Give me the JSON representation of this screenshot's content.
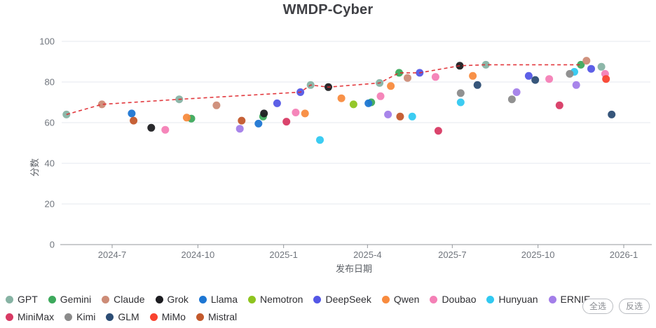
{
  "header": {
    "title": "WMDP-Cyber"
  },
  "controls": {
    "select_all_label": "全选",
    "invert_label": "反选"
  },
  "chart_data": {
    "type": "scatter",
    "title": "WMDP-Cyber",
    "xlabel": "发布日期",
    "ylabel": "分数",
    "ylim": [
      0,
      100
    ],
    "grid": true,
    "legend_position": "bottom",
    "y_ticks": [
      0,
      20,
      40,
      60,
      80,
      100
    ],
    "x_ticks": [
      {
        "label": "2024-7",
        "date": "2024-07-01"
      },
      {
        "label": "2024-10",
        "date": "2024-10-01"
      },
      {
        "label": "2025-1",
        "date": "2025-01-01"
      },
      {
        "label": "2025-4",
        "date": "2025-04-01"
      },
      {
        "label": "2025-7",
        "date": "2025-07-01"
      },
      {
        "label": "2025-10",
        "date": "2025-10-01"
      },
      {
        "label": "2026-1",
        "date": "2026-01-01"
      }
    ],
    "series": [
      {
        "name": "GPT",
        "color": "#87b3a4",
        "points": [
          [
            "2024-05-13",
            64
          ],
          [
            "2024-09-11",
            71.5
          ],
          [
            "2025-01-30",
            78.5
          ],
          [
            "2025-04-14",
            79.5
          ],
          [
            "2025-08-06",
            88.5
          ],
          [
            "2025-12-08",
            87.5
          ]
        ]
      },
      {
        "name": "Gemini",
        "color": "#3da95c",
        "points": [
          [
            "2024-09-24",
            62
          ],
          [
            "2024-12-10",
            63
          ],
          [
            "2025-04-05",
            70
          ],
          [
            "2025-05-05",
            84.5
          ],
          [
            "2025-11-16",
            88.5
          ]
        ]
      },
      {
        "name": "Claude",
        "color": "#cd8c77",
        "points": [
          [
            "2024-06-20",
            69
          ],
          [
            "2024-10-21",
            68.5
          ],
          [
            "2025-05-14",
            82
          ],
          [
            "2025-11-22",
            90.5
          ]
        ]
      },
      {
        "name": "Grok",
        "color": "#1d1d21",
        "points": [
          [
            "2024-08-12",
            57.5
          ],
          [
            "2024-12-11",
            64.5
          ],
          [
            "2025-02-18",
            77.5
          ],
          [
            "2025-07-09",
            88
          ]
        ]
      },
      {
        "name": "Llama",
        "color": "#1d76d3",
        "points": [
          [
            "2024-07-22",
            64.5
          ],
          [
            "2024-12-05",
            59.5
          ],
          [
            "2025-04-02",
            69.5
          ]
        ]
      },
      {
        "name": "Nemotron",
        "color": "#8ec41f",
        "points": [
          [
            "2025-03-17",
            69
          ]
        ]
      },
      {
        "name": "DeepSeek",
        "color": "#5457e6",
        "points": [
          [
            "2024-12-25",
            69.5
          ],
          [
            "2025-01-19",
            75
          ],
          [
            "2025-05-27",
            84.5
          ],
          [
            "2025-09-21",
            83
          ],
          [
            "2025-11-27",
            86.5
          ]
        ]
      },
      {
        "name": "Qwen",
        "color": "#f88b3e",
        "points": [
          [
            "2024-09-19",
            62.5
          ],
          [
            "2025-01-24",
            64.5
          ],
          [
            "2025-03-04",
            72
          ],
          [
            "2025-04-26",
            78
          ],
          [
            "2025-07-23",
            83
          ]
        ]
      },
      {
        "name": "Doubao",
        "color": "#f480b6",
        "points": [
          [
            "2024-08-27",
            56.5
          ],
          [
            "2025-01-14",
            65
          ],
          [
            "2025-04-15",
            73
          ],
          [
            "2025-06-13",
            82.5
          ],
          [
            "2025-10-13",
            81.5
          ],
          [
            "2025-12-12",
            84
          ]
        ]
      },
      {
        "name": "Hunyuan",
        "color": "#31c9f1",
        "points": [
          [
            "2025-02-09",
            51.5
          ],
          [
            "2025-05-19",
            63
          ],
          [
            "2025-07-10",
            70
          ],
          [
            "2025-11-09",
            85
          ]
        ]
      },
      {
        "name": "ERNIE",
        "color": "#a37ee9",
        "points": [
          [
            "2024-11-15",
            57
          ],
          [
            "2025-04-23",
            64
          ],
          [
            "2025-09-08",
            75
          ],
          [
            "2025-11-11",
            78.5
          ]
        ]
      },
      {
        "name": "MiniMax",
        "color": "#d83a64",
        "points": [
          [
            "2025-01-04",
            60.5
          ],
          [
            "2025-06-16",
            56
          ],
          [
            "2025-10-24",
            68.5
          ]
        ]
      },
      {
        "name": "Kimi",
        "color": "#8b8b8b",
        "points": [
          [
            "2025-07-10",
            74.5
          ],
          [
            "2025-09-03",
            71.5
          ],
          [
            "2025-11-04",
            84
          ]
        ]
      },
      {
        "name": "GLM",
        "color": "#2c4d74",
        "points": [
          [
            "2025-07-28",
            78.5
          ],
          [
            "2025-09-28",
            81
          ],
          [
            "2025-12-19",
            64
          ]
        ]
      },
      {
        "name": "MiMo",
        "color": "#f9432f",
        "points": [
          [
            "2025-12-13",
            81.5
          ]
        ]
      },
      {
        "name": "Mistral",
        "color": "#c3592c",
        "points": [
          [
            "2024-07-24",
            61
          ],
          [
            "2024-11-17",
            61
          ],
          [
            "2025-05-06",
            63
          ]
        ]
      }
    ],
    "frontier": {
      "color": "#e0282e",
      "style": "dashed",
      "points": [
        [
          "2024-05-13",
          64
        ],
        [
          "2024-06-20",
          69
        ],
        [
          "2024-09-11",
          71.5
        ],
        [
          "2025-01-19",
          75
        ],
        [
          "2025-01-30",
          78.5
        ],
        [
          "2025-02-18",
          77.5
        ],
        [
          "2025-04-14",
          79.5
        ],
        [
          "2025-05-05",
          84.5
        ],
        [
          "2025-05-27",
          84.5
        ],
        [
          "2025-07-09",
          88
        ],
        [
          "2025-08-06",
          88.5
        ],
        [
          "2025-11-16",
          88.5
        ]
      ]
    }
  }
}
